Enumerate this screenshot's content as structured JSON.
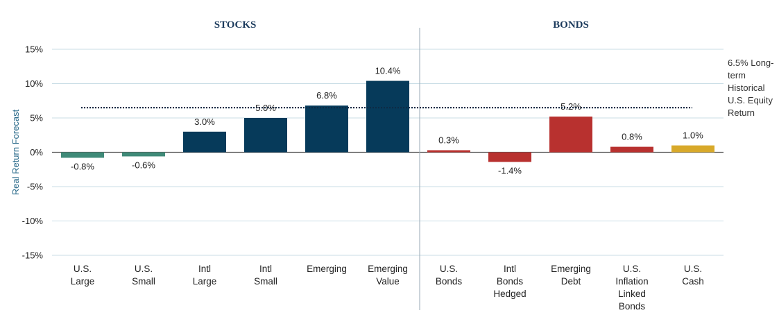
{
  "chart_data": {
    "type": "bar",
    "sections": [
      {
        "name": "STOCKS",
        "categories": [
          "U.S. Large",
          "U.S. Small",
          "Intl Large",
          "Intl Small",
          "Emerging",
          "Emerging Value"
        ]
      },
      {
        "name": "BONDS",
        "categories": [
          "U.S. Bonds",
          "Intl Bonds Hedged",
          "Emerging Debt",
          "U.S. Inflation Linked Bonds",
          "U.S. Cash"
        ]
      }
    ],
    "categories": [
      [
        "U.S.",
        "Large"
      ],
      [
        "U.S.",
        "Small"
      ],
      [
        "Intl",
        "Large"
      ],
      [
        "Intl",
        "Small"
      ],
      [
        "Emerging"
      ],
      [
        "Emerging",
        "Value"
      ],
      [
        "U.S.",
        "Bonds"
      ],
      [
        "Intl",
        "Bonds",
        "Hedged"
      ],
      [
        "Emerging",
        "Debt"
      ],
      [
        "U.S.",
        "Inflation",
        "Linked",
        "Bonds"
      ],
      [
        "U.S.",
        "Cash"
      ]
    ],
    "values": [
      -0.8,
      -0.6,
      3.0,
      5.0,
      6.8,
      10.4,
      0.3,
      -1.4,
      5.2,
      0.8,
      1.0
    ],
    "data_labels": [
      "-0.8%",
      "-0.6%",
      "3.0%",
      "5.0%",
      "6.8%",
      "10.4%",
      "0.3%",
      "-1.4%",
      "5.2%",
      "0.8%",
      "1.0%"
    ],
    "bar_colors": [
      "#3f8a78",
      "#3f8a78",
      "#063a5a",
      "#063a5a",
      "#063a5a",
      "#063a5a",
      "#b8312f",
      "#b8312f",
      "#b8312f",
      "#b8312f",
      "#d8a92a"
    ],
    "ylabel": "Real Return Forecast",
    "ylim": [
      -15,
      15
    ],
    "yticks": [
      15,
      10,
      5,
      0,
      -5,
      -10,
      -15
    ],
    "ytick_labels": [
      "15%",
      "10%",
      "5%",
      "0%",
      "-5%",
      "-10%",
      "-15%"
    ],
    "grid": true,
    "reference_line": {
      "value": 6.5,
      "label": [
        "6.5% Long-",
        "term",
        "Historical",
        "U.S. Equity",
        "Return"
      ]
    }
  }
}
